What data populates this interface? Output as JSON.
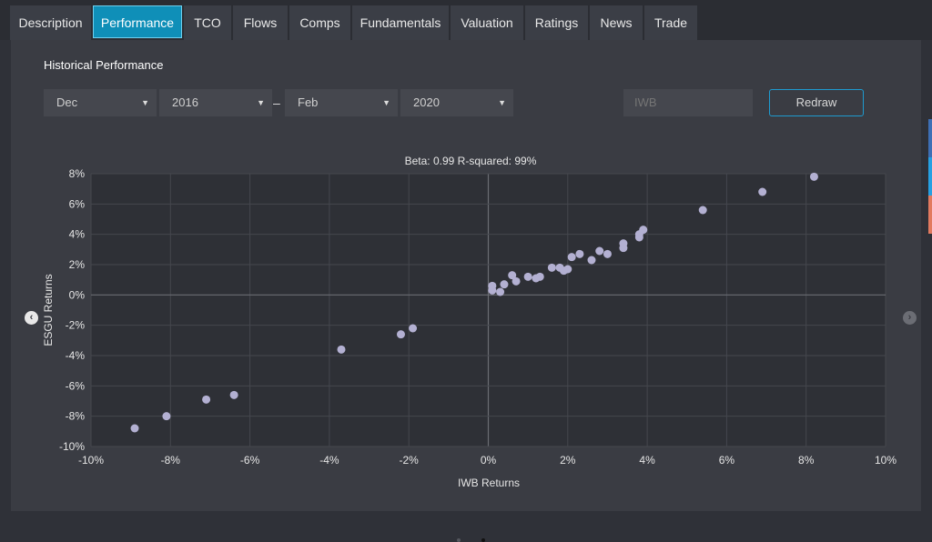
{
  "tabs": [
    {
      "label": "Description",
      "active": false
    },
    {
      "label": "Performance",
      "active": true
    },
    {
      "label": "TCO",
      "active": false
    },
    {
      "label": "Flows",
      "active": false
    },
    {
      "label": "Comps",
      "active": false
    },
    {
      "label": "Fundamentals",
      "active": false
    },
    {
      "label": "Valuation",
      "active": false
    },
    {
      "label": "Ratings",
      "active": false
    },
    {
      "label": "News",
      "active": false
    },
    {
      "label": "Trade",
      "active": false
    }
  ],
  "section": {
    "title": "Historical Performance"
  },
  "controls": {
    "start_month": "Dec",
    "start_year": "2016",
    "separator": "–",
    "end_month": "Feb",
    "end_year": "2020",
    "ticker": "IWB",
    "redraw_label": "Redraw"
  },
  "colors": {
    "accent": "#0f8fb8",
    "point": "#b3b0d2",
    "strip": [
      "#3d6fb5",
      "#26a0e2",
      "#e27a5f"
    ]
  },
  "chart_data": {
    "type": "scatter",
    "title": "Beta: 0.99  R-squared: 99%",
    "xlabel": "IWB Returns",
    "ylabel": "ESGU Returns",
    "xlim": [
      -10,
      10
    ],
    "ylim": [
      -10,
      8
    ],
    "x_ticks": [
      -10,
      -8,
      -6,
      -4,
      -2,
      0,
      2,
      4,
      6,
      8,
      10
    ],
    "y_ticks": [
      -10,
      -8,
      -6,
      -4,
      -2,
      0,
      2,
      4,
      6,
      8
    ],
    "x_tick_labels": [
      "-10%",
      "-8%",
      "-6%",
      "-4%",
      "-2%",
      "0%",
      "2%",
      "4%",
      "6%",
      "8%",
      "10%"
    ],
    "y_tick_labels": [
      "-10%",
      "-8%",
      "-6%",
      "-4%",
      "-2%",
      "0%",
      "2%",
      "4%",
      "6%",
      "8%"
    ],
    "grid": true,
    "points": [
      {
        "x": -8.9,
        "y": -8.8
      },
      {
        "x": -8.1,
        "y": -8.0
      },
      {
        "x": -7.1,
        "y": -6.9
      },
      {
        "x": -6.4,
        "y": -6.6
      },
      {
        "x": -3.7,
        "y": -3.6
      },
      {
        "x": -2.2,
        "y": -2.6
      },
      {
        "x": -1.9,
        "y": -2.2
      },
      {
        "x": 0.1,
        "y": 0.3
      },
      {
        "x": 0.1,
        "y": 0.6
      },
      {
        "x": 0.3,
        "y": 0.2
      },
      {
        "x": 0.4,
        "y": 0.7
      },
      {
        "x": 0.6,
        "y": 1.3
      },
      {
        "x": 0.7,
        "y": 0.9
      },
      {
        "x": 1.0,
        "y": 1.2
      },
      {
        "x": 1.2,
        "y": 1.1
      },
      {
        "x": 1.3,
        "y": 1.2
      },
      {
        "x": 1.6,
        "y": 1.8
      },
      {
        "x": 1.8,
        "y": 1.8
      },
      {
        "x": 1.9,
        "y": 1.6
      },
      {
        "x": 2.0,
        "y": 1.7
      },
      {
        "x": 2.1,
        "y": 2.5
      },
      {
        "x": 2.3,
        "y": 2.7
      },
      {
        "x": 2.6,
        "y": 2.3
      },
      {
        "x": 2.8,
        "y": 2.9
      },
      {
        "x": 3.0,
        "y": 2.7
      },
      {
        "x": 3.4,
        "y": 3.1
      },
      {
        "x": 3.4,
        "y": 3.4
      },
      {
        "x": 3.8,
        "y": 3.8
      },
      {
        "x": 3.8,
        "y": 4.0
      },
      {
        "x": 3.9,
        "y": 4.3
      },
      {
        "x": 5.4,
        "y": 5.6
      },
      {
        "x": 6.9,
        "y": 6.8
      },
      {
        "x": 8.2,
        "y": 7.8
      }
    ]
  }
}
